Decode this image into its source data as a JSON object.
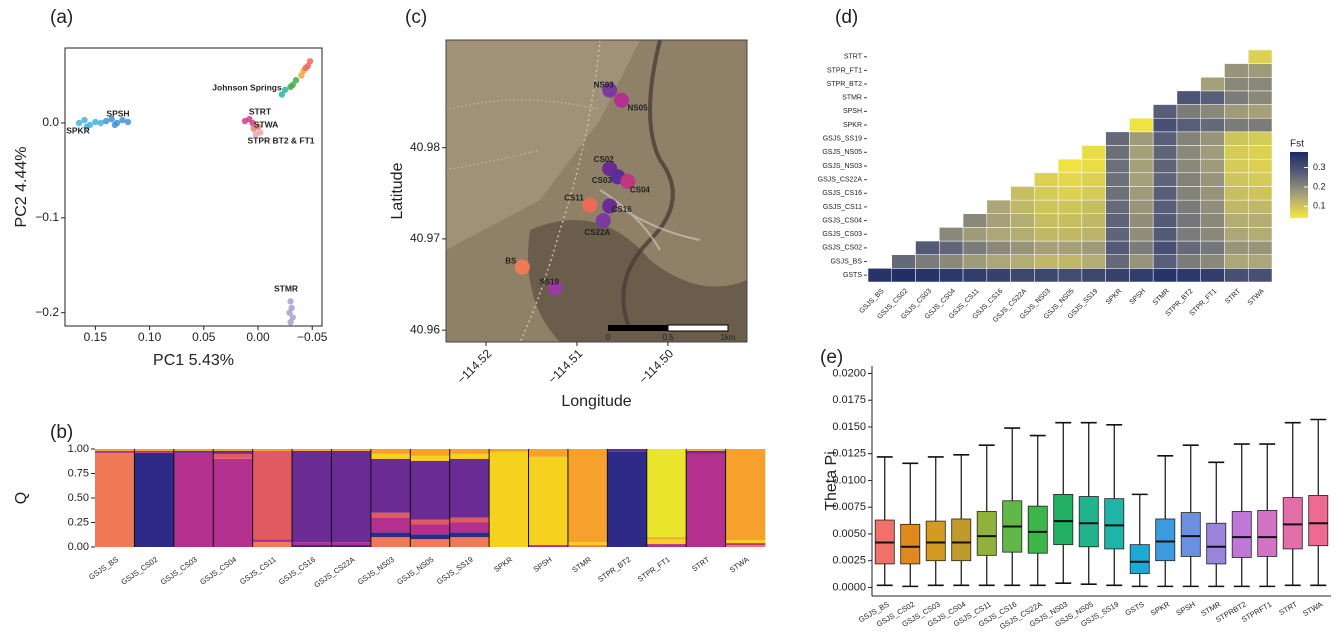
{
  "chart_data": [
    {
      "type": "scatter",
      "panel_label": "(a)",
      "x_label": "PC1 5.43%",
      "y_label": "PC2 4.44%",
      "xlim": [
        0.178,
        -0.059
      ],
      "ylim": [
        -0.214,
        0.079
      ],
      "xticks": [
        {
          "value": 0.15,
          "label": "0.15"
        },
        {
          "value": 0.1,
          "label": "0.10"
        },
        {
          "value": 0.05,
          "label": "0.05"
        },
        {
          "value": 0,
          "label": "0.00"
        },
        {
          "value": -0.05,
          "label": "−0.05"
        }
      ],
      "yticks": [
        {
          "value": 0,
          "label": "0.0"
        },
        {
          "value": -0.1,
          "label": "−0.1"
        },
        {
          "value": -0.2,
          "label": "−0.2"
        }
      ],
      "x": [
        0.165,
        0.16,
        0.155,
        0.15,
        0.145,
        0.158,
        0.14,
        0.135,
        0.13,
        0.125,
        0.12,
        0.132,
        -0.022,
        -0.025,
        -0.03,
        -0.035,
        -0.032,
        -0.04,
        -0.042,
        -0.046,
        -0.048,
        -0.044,
        0.012,
        0.008,
        0.005,
        0.004,
        0,
        -0.002,
        0.002,
        -0.03,
        -0.031,
        -0.029,
        -0.032,
        -0.03
      ],
      "y": [
        0,
        0.003,
        -0.002,
        0.001,
        0,
        -0.004,
        0.002,
        0.004,
        0,
        0.003,
        0.001,
        -0.002,
        0.03,
        0.035,
        0.038,
        0.045,
        0.04,
        0.05,
        0.055,
        0.06,
        0.065,
        0.058,
        0.002,
        0.004,
        0,
        -0.006,
        -0.004,
        -0.01,
        -0.012,
        -0.188,
        -0.195,
        -0.2,
        -0.205,
        -0.21
      ],
      "colors": [
        "#45b1e0",
        "#45b1e0",
        "#45b1e0",
        "#45b1e0",
        "#45b1e0",
        "#45b1e0",
        "#3f93d4",
        "#3f93d4",
        "#3f93d4",
        "#3f93d4",
        "#3f93d4",
        "#3f93d4",
        "#2bb5a3",
        "#2bb5a3",
        "#3fae49",
        "#3fae49",
        "#3fae49",
        "#f2a53a",
        "#f2a53a",
        "#f0665c",
        "#f0665c",
        "#f0665c",
        "#d23c8c",
        "#d23c8c",
        "#d23c8c",
        "#e9806a",
        "#e9806a",
        "#f2a0a8",
        "#f2a0a8",
        "#a99fd2",
        "#a99fd2",
        "#a99fd2",
        "#a99fd2",
        "#a99fd2"
      ],
      "annotations": [
        "SPKR",
        "SPSH",
        "Johnson Springs",
        "STRT",
        "STWA",
        "STPR BT2 & FT1",
        "STMR"
      ]
    },
    {
      "type": "stacked_bar",
      "panel_label": "(b)",
      "y_label": "Q",
      "ylim": [
        0,
        1
      ],
      "yticks": [
        {
          "value": 0,
          "label": "0.00"
        },
        {
          "value": 0.25,
          "label": "0.25"
        },
        {
          "value": 0.5,
          "label": "0.50"
        },
        {
          "value": 0.75,
          "label": "0.75"
        },
        {
          "value": 1,
          "label": "1.00"
        }
      ],
      "categories": [
        "GSJS_BS",
        "GSJS_CS02",
        "GSJS_CS03",
        "GSJS_CS04",
        "GSJS_CS11",
        "GSJS_CS16",
        "GSJS_CS22A",
        "GSJS_NS03",
        "GSJS_NS05",
        "GSJS_SS19",
        "SPKR",
        "SPSH",
        "STMR",
        "STPR_BT2",
        "STPR_FT1",
        "STRT",
        "STWA"
      ],
      "series": [
        {
          "color": "#ef7a55",
          "values": [
            0.96,
            0,
            0,
            0,
            0.05,
            0,
            0,
            0.1,
            0.08,
            0.1,
            0,
            0,
            0.02,
            0,
            0,
            0,
            0.02
          ]
        },
        {
          "color": "#2d2b86",
          "values": [
            0,
            0.96,
            0,
            0,
            0,
            0.02,
            0.02,
            0.05,
            0.05,
            0.05,
            0,
            0,
            0,
            0.97,
            0,
            0,
            0
          ]
        },
        {
          "color": "#b3308f",
          "values": [
            0.02,
            0.02,
            0.96,
            0.9,
            0.03,
            0.03,
            0.03,
            0.15,
            0.1,
            0.1,
            0,
            0.02,
            0,
            0,
            0.03,
            0.95,
            0.02
          ]
        },
        {
          "color": "#e15a62",
          "values": [
            0,
            0,
            0,
            0.05,
            0.9,
            0,
            0,
            0.05,
            0.05,
            0.05,
            0,
            0,
            0,
            0,
            0,
            0,
            0
          ]
        },
        {
          "color": "#6a2b95",
          "values": [
            0,
            0,
            0.02,
            0.03,
            0,
            0.93,
            0.93,
            0.55,
            0.6,
            0.6,
            0,
            0,
            0,
            0.03,
            0,
            0.03,
            0
          ]
        },
        {
          "color": "#f6d11e",
          "values": [
            0,
            0,
            0,
            0,
            0,
            0,
            0,
            0.05,
            0.05,
            0.05,
            0.97,
            0.9,
            0.03,
            0,
            0.05,
            0,
            0.03
          ]
        },
        {
          "color": "#f6a12c",
          "values": [
            0.02,
            0.02,
            0.02,
            0.02,
            0.02,
            0.02,
            0.02,
            0.05,
            0.07,
            0.05,
            0.03,
            0.08,
            0.95,
            0,
            0.02,
            0.02,
            0.93
          ]
        },
        {
          "color": "#e9e62b",
          "values": [
            0,
            0,
            0,
            0,
            0,
            0,
            0,
            0,
            0,
            0,
            0,
            0,
            0,
            0,
            0.9,
            0,
            0
          ]
        }
      ]
    },
    {
      "type": "map",
      "panel_label": "(c)",
      "x_label": "Longitude",
      "y_label": "Latitude",
      "xlim": [
        -114.5244,
        -114.4913
      ],
      "ylim": [
        40.9587,
        40.9918
      ],
      "xticks": [
        {
          "value": -114.52,
          "label": "−114.52"
        },
        {
          "value": -114.51,
          "label": "−114.51"
        },
        {
          "value": -114.5,
          "label": "−114.50"
        }
      ],
      "yticks": [
        40.96,
        40.97,
        40.98
      ],
      "sites": [
        "NS03",
        "NS05",
        "CS02",
        "CS03",
        "CS04",
        "CS11",
        "CS16",
        "CS22A",
        "BS",
        "SS19"
      ],
      "x": [
        -114.5064,
        -114.5051,
        -114.5064,
        -114.5055,
        -114.5044,
        -114.5086,
        -114.5064,
        -114.5071,
        -114.516,
        -114.5124
      ],
      "y": [
        40.9863,
        40.9852,
        40.9777,
        40.9768,
        40.9763,
        40.9737,
        40.9736,
        40.972,
        40.9669,
        40.9646
      ],
      "colors": [
        "#7a3aa0",
        "#b3308f",
        "#6a2b95",
        "#5a2e9a",
        "#c0357f",
        "#ef6a55",
        "#6a2b95",
        "#7a3aa0",
        "#ef7a55",
        "#9b3aa0"
      ],
      "scale_bar_labels": [
        "0",
        "0.5",
        "1km"
      ]
    },
    {
      "type": "heatmap",
      "panel_label": "(d)",
      "colorbar_title": "Fst",
      "colorbar_ticks": [
        0.1,
        0.2,
        0.3
      ],
      "zlim": [
        0.04,
        0.38
      ],
      "colorscale": [
        "#f7e93b",
        "#aaa47a",
        "#5a6078",
        "#1b2a63"
      ],
      "x_categories": [
        "GSJS_BS",
        "GSJS_CS02",
        "GSJS_CS03",
        "GSJS_CS04",
        "GSJS_CS11",
        "GSJS_CS16",
        "GSJS_CS22A",
        "GSJS_NS03",
        "GSJS_NS05",
        "GSJS_SS19",
        "SPKR",
        "SPSH",
        "STMR",
        "STPR_BT2",
        "STPR_FT1",
        "STRT",
        "STWA"
      ],
      "y_categories": [
        "GSTS",
        "GSJS_BS",
        "GSJS_CS02",
        "GSJS_CS03",
        "GSJS_CS04",
        "GSJS_CS11",
        "GSJS_CS16",
        "GSJS_CS22A",
        "GSJS_NS03",
        "GSJS_NS05",
        "GSJS_SS19",
        "SPKR",
        "SPSH",
        "STMR",
        "STPR_BT2",
        "STPR_FT1",
        "STRT"
      ],
      "z": [
        [
          0.36,
          0.37,
          0.36,
          0.35,
          0.34,
          0.33,
          0.32,
          0.32,
          0.31,
          0.32,
          0.33,
          0.34,
          0.36,
          0.35,
          0.34,
          0.3,
          0.3
        ],
        [
          null,
          0.25,
          0.22,
          0.2,
          0.17,
          0.15,
          0.14,
          0.12,
          0.12,
          0.14,
          0.25,
          0.18,
          0.27,
          0.22,
          0.2,
          0.15,
          0.15
        ],
        [
          null,
          null,
          0.28,
          0.26,
          0.22,
          0.2,
          0.18,
          0.16,
          0.16,
          0.17,
          0.28,
          0.22,
          0.3,
          0.25,
          0.23,
          0.18,
          0.18
        ],
        [
          null,
          null,
          null,
          0.2,
          0.17,
          0.15,
          0.14,
          0.12,
          0.12,
          0.13,
          0.26,
          0.19,
          0.28,
          0.22,
          0.2,
          0.15,
          0.14
        ],
        [
          null,
          null,
          null,
          null,
          0.2,
          0.16,
          0.14,
          0.11,
          0.11,
          0.12,
          0.26,
          0.19,
          0.28,
          0.23,
          0.2,
          0.14,
          0.14
        ],
        [
          null,
          null,
          null,
          null,
          null,
          0.15,
          0.12,
          0.1,
          0.1,
          0.11,
          0.25,
          0.18,
          0.27,
          0.22,
          0.19,
          0.12,
          0.12
        ],
        [
          null,
          null,
          null,
          null,
          null,
          null,
          0.11,
          0.09,
          0.08,
          0.09,
          0.24,
          0.17,
          0.27,
          0.21,
          0.18,
          0.11,
          0.1
        ],
        [
          null,
          null,
          null,
          null,
          null,
          null,
          null,
          0.08,
          0.07,
          0.08,
          0.24,
          0.16,
          0.26,
          0.21,
          0.18,
          0.1,
          0.09
        ],
        [
          null,
          null,
          null,
          null,
          null,
          null,
          null,
          null,
          0.05,
          0.06,
          0.24,
          0.16,
          0.26,
          0.2,
          0.17,
          0.09,
          0.08
        ],
        [
          null,
          null,
          null,
          null,
          null,
          null,
          null,
          null,
          null,
          0.06,
          0.24,
          0.16,
          0.26,
          0.2,
          0.17,
          0.09,
          0.08
        ],
        [
          null,
          null,
          null,
          null,
          null,
          null,
          null,
          null,
          null,
          null,
          0.25,
          0.17,
          0.27,
          0.21,
          0.18,
          0.1,
          0.09
        ],
        [
          null,
          null,
          null,
          null,
          null,
          null,
          null,
          null,
          null,
          null,
          null,
          0.05,
          0.3,
          0.27,
          0.25,
          0.22,
          0.22
        ],
        [
          null,
          null,
          null,
          null,
          null,
          null,
          null,
          null,
          null,
          null,
          null,
          null,
          0.27,
          0.22,
          0.2,
          0.17,
          0.16
        ],
        [
          null,
          null,
          null,
          null,
          null,
          null,
          null,
          null,
          null,
          null,
          null,
          null,
          null,
          0.29,
          0.27,
          0.22,
          0.2
        ],
        [
          null,
          null,
          null,
          null,
          null,
          null,
          null,
          null,
          null,
          null,
          null,
          null,
          null,
          null,
          0.16,
          0.2,
          0.2
        ],
        [
          null,
          null,
          null,
          null,
          null,
          null,
          null,
          null,
          null,
          null,
          null,
          null,
          null,
          null,
          null,
          0.18,
          0.17
        ],
        [
          null,
          null,
          null,
          null,
          null,
          null,
          null,
          null,
          null,
          null,
          null,
          null,
          null,
          null,
          null,
          null,
          0.08
        ]
      ]
    },
    {
      "type": "boxplot",
      "panel_label": "(e)",
      "y_label": "Theta Pi",
      "ylim": [
        -0.0008,
        0.0207
      ],
      "yticks": [
        {
          "value": 0,
          "label": "0.0000"
        },
        {
          "value": 0.0025,
          "label": "0.0025"
        },
        {
          "value": 0.005,
          "label": "0.0050"
        },
        {
          "value": 0.0075,
          "label": "0.0075"
        },
        {
          "value": 0.01,
          "label": "0.0100"
        },
        {
          "value": 0.0125,
          "label": "0.0125"
        },
        {
          "value": 0.015,
          "label": "0.0150"
        },
        {
          "value": 0.0175,
          "label": "0.0175"
        },
        {
          "value": 0.02,
          "label": "0.0200"
        }
      ],
      "categories": [
        "GSJS_BS",
        "GSJS_CS02",
        "GSJS_CS03",
        "GSJS_CS04",
        "GSJS_CS11",
        "GSJS_CS16",
        "GSJS_CS22A",
        "GSJS_NS03",
        "GSJS_NS05",
        "GSJS_SS19",
        "GSTS",
        "SPKR",
        "SPSH",
        "STMR",
        "STPRBT2",
        "STPRFT1",
        "STRT",
        "STWA"
      ],
      "boxes": [
        [
          0.0002,
          0.0022,
          0.0042,
          0.0063,
          0.0122
        ],
        [
          0.0001,
          0.0022,
          0.0038,
          0.0059,
          0.0116
        ],
        [
          0.0002,
          0.0025,
          0.0042,
          0.0062,
          0.0122
        ],
        [
          0.0002,
          0.0025,
          0.0042,
          0.0064,
          0.0124
        ],
        [
          0.0002,
          0.003,
          0.0048,
          0.0071,
          0.0133
        ],
        [
          0.0002,
          0.0033,
          0.0057,
          0.0081,
          0.0149
        ],
        [
          0.0002,
          0.0032,
          0.0052,
          0.0076,
          0.0142
        ],
        [
          0.0004,
          0.004,
          0.0062,
          0.0087,
          0.0154
        ],
        [
          0.0003,
          0.0038,
          0.006,
          0.0085,
          0.0154
        ],
        [
          0.0002,
          0.0036,
          0.0058,
          0.0083,
          0.0152
        ],
        [
          0.0001,
          0.0013,
          0.0024,
          0.004,
          0.0087
        ],
        [
          0.0001,
          0.0025,
          0.0043,
          0.0064,
          0.0123
        ],
        [
          0.0001,
          0.0029,
          0.0048,
          0.007,
          0.0133
        ],
        [
          0.0001,
          0.0022,
          0.0038,
          0.006,
          0.0117
        ],
        [
          0.0001,
          0.0028,
          0.0047,
          0.0071,
          0.0134
        ],
        [
          0.0001,
          0.0029,
          0.0047,
          0.0072,
          0.0134
        ],
        [
          0.0002,
          0.0036,
          0.0059,
          0.0084,
          0.0154
        ],
        [
          0.0002,
          0.0039,
          0.006,
          0.0086,
          0.0157
        ]
      ],
      "colors": [
        "#f0716a",
        "#e08a1e",
        "#d49a22",
        "#c09a2a",
        "#8eb23a",
        "#62b846",
        "#3cb549",
        "#22b062",
        "#21b48f",
        "#1eb5a8",
        "#1ea9d6",
        "#3b9bde",
        "#6d8fe0",
        "#9c84dd",
        "#c078d8",
        "#d473c6",
        "#e46ea9",
        "#ee6a95"
      ]
    }
  ]
}
